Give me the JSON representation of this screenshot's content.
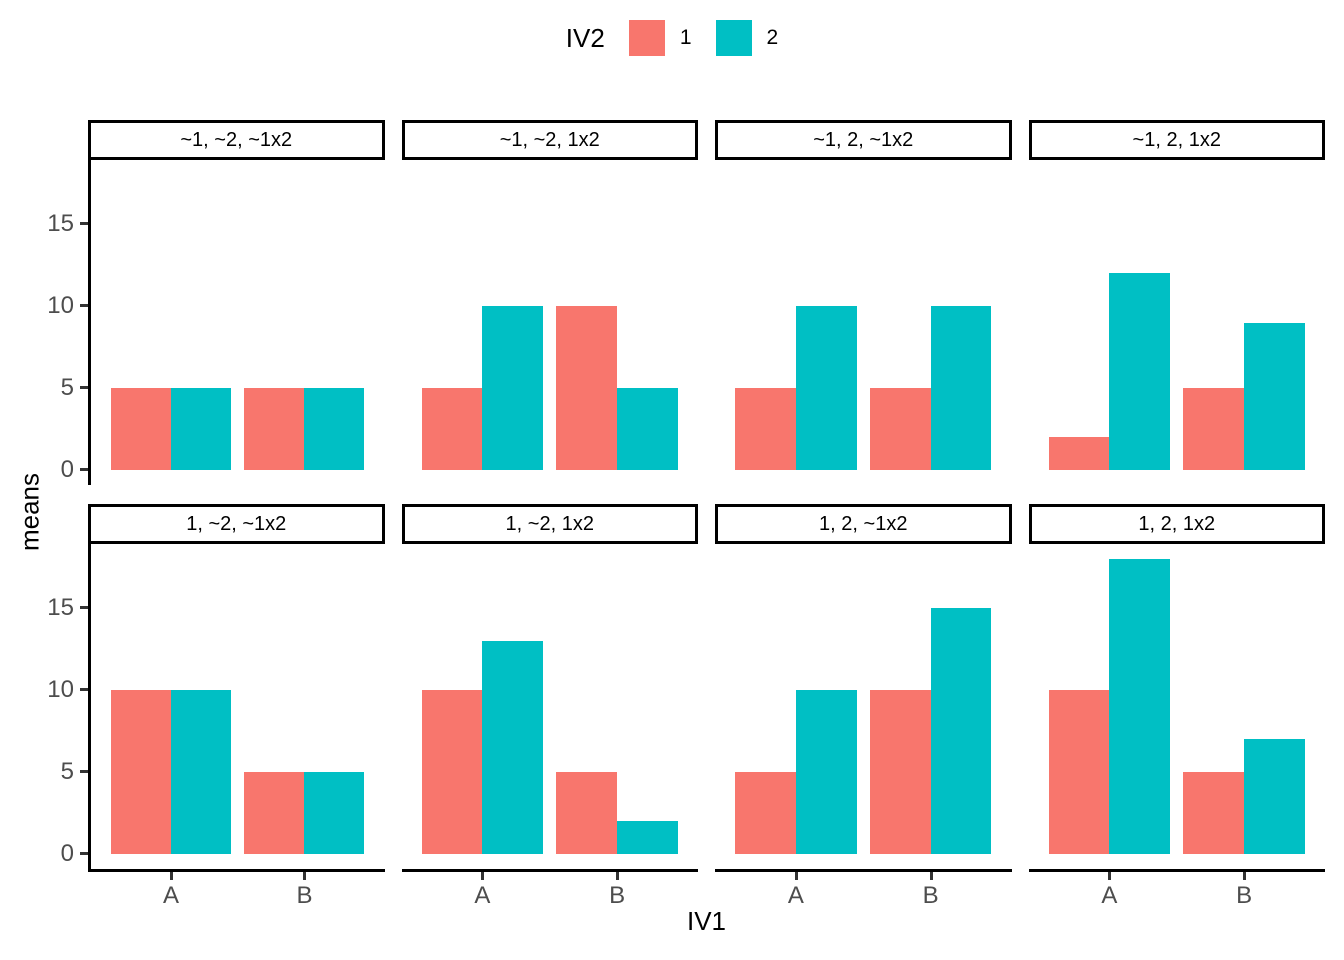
{
  "legend": {
    "title": "IV2",
    "items": [
      {
        "label": "1",
        "color": "#F8766D"
      },
      {
        "label": "2",
        "color": "#00BFC4"
      }
    ]
  },
  "axes": {
    "x_label": "IV1",
    "y_label": "means",
    "x_categories": [
      "A",
      "B"
    ],
    "y_ticks": [
      0,
      5,
      10,
      15
    ],
    "y_range": [
      -0.9,
      18.9
    ]
  },
  "chart_data": {
    "type": "bar",
    "title": "",
    "xlabel": "IV1",
    "ylabel": "means",
    "legend_title": "IV2",
    "categories": [
      "A",
      "B"
    ],
    "ylim": [
      0,
      18.9
    ],
    "grid": false,
    "legend_position": "top",
    "series_colors": {
      "1": "#F8766D",
      "2": "#00BFC4"
    },
    "facets": [
      {
        "label": "~1, ~2, ~1x2",
        "series": [
          {
            "name": "1",
            "values": [
              5,
              5
            ]
          },
          {
            "name": "2",
            "values": [
              5,
              5
            ]
          }
        ]
      },
      {
        "label": "~1, ~2, 1x2",
        "series": [
          {
            "name": "1",
            "values": [
              5,
              10
            ]
          },
          {
            "name": "2",
            "values": [
              10,
              5
            ]
          }
        ]
      },
      {
        "label": "~1, 2, ~1x2",
        "series": [
          {
            "name": "1",
            "values": [
              5,
              5
            ]
          },
          {
            "name": "2",
            "values": [
              10,
              10
            ]
          }
        ]
      },
      {
        "label": "~1, 2, 1x2",
        "series": [
          {
            "name": "1",
            "values": [
              2,
              5
            ]
          },
          {
            "name": "2",
            "values": [
              12,
              9
            ]
          }
        ]
      },
      {
        "label": "1, ~2, ~1x2",
        "series": [
          {
            "name": "1",
            "values": [
              10,
              5
            ]
          },
          {
            "name": "2",
            "values": [
              10,
              5
            ]
          }
        ]
      },
      {
        "label": "1, ~2, 1x2",
        "series": [
          {
            "name": "1",
            "values": [
              10,
              5
            ]
          },
          {
            "name": "2",
            "values": [
              13,
              2
            ]
          }
        ]
      },
      {
        "label": "1, 2, ~1x2",
        "series": [
          {
            "name": "1",
            "values": [
              5,
              10
            ]
          },
          {
            "name": "2",
            "values": [
              10,
              15
            ]
          }
        ]
      },
      {
        "label": "1, 2, 1x2",
        "series": [
          {
            "name": "1",
            "values": [
              10,
              5
            ]
          },
          {
            "name": "2",
            "values": [
              18,
              7
            ]
          }
        ]
      }
    ]
  }
}
